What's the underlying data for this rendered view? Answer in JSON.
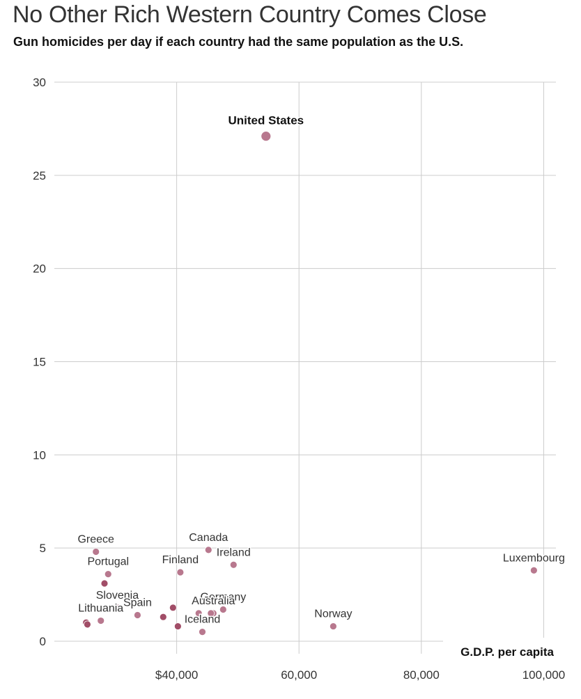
{
  "header": {
    "title": "No Other Rich Western Country Comes Close",
    "subtitle": "Gun homicides per day if each country had the same population as the U.S."
  },
  "colors": {
    "point": "#b8788e",
    "point_dark": "#a14d67",
    "highlight": "#b8788e",
    "grid": "#cccccc",
    "label_halo": "#ffffff"
  },
  "chart_data": {
    "type": "scatter",
    "title": "No Other Rich Western Country Comes Close",
    "subtitle": "Gun homicides per day if each country had the same population as the U.S.",
    "xlabel": "G.D.P. per capita",
    "ylabel": "",
    "xlim": [
      20000,
      102000
    ],
    "ylim": [
      0,
      30
    ],
    "xticks": [
      40000,
      60000,
      80000,
      100000
    ],
    "xtick_labels": [
      "$40,000",
      "60,000",
      "80,000",
      "100,000"
    ],
    "yticks": [
      0,
      5,
      10,
      15,
      20,
      25,
      30
    ],
    "ytick_labels": [
      "0",
      "5",
      "10",
      "15",
      "20",
      "25",
      "30"
    ],
    "grid": true,
    "points": [
      {
        "label": "United States",
        "x": 54600,
        "y": 27.1,
        "highlight": true
      },
      {
        "label": "Greece",
        "x": 26800,
        "y": 4.8
      },
      {
        "label": "Portugal",
        "x": 28800,
        "y": 3.6
      },
      {
        "label": "",
        "x": 28200,
        "y": 3.1
      },
      {
        "label": "Canada",
        "x": 45200,
        "y": 4.9
      },
      {
        "label": "Ireland",
        "x": 49300,
        "y": 4.1
      },
      {
        "label": "Finland",
        "x": 40600,
        "y": 3.7
      },
      {
        "label": "Luxembourg",
        "x": 98400,
        "y": 3.8
      },
      {
        "label": "Slovenia",
        "x": 30300,
        "y": 1.8
      },
      {
        "label": "Spain",
        "x": 33600,
        "y": 1.4
      },
      {
        "label": "Lithuania",
        "x": 27600,
        "y": 1.1
      },
      {
        "label": "",
        "x": 25200,
        "y": 1.0
      },
      {
        "label": "",
        "x": 25400,
        "y": 0.9
      },
      {
        "label": "",
        "x": 37800,
        "y": 1.3
      },
      {
        "label": "",
        "x": 39400,
        "y": 1.8
      },
      {
        "label": "Germany",
        "x": 47600,
        "y": 1.7
      },
      {
        "label": "Australia",
        "x": 46000,
        "y": 1.5
      },
      {
        "label": "",
        "x": 43600,
        "y": 1.5
      },
      {
        "label": "",
        "x": 45600,
        "y": 1.5
      },
      {
        "label": "Iceland",
        "x": 44200,
        "y": 0.5
      },
      {
        "label": "",
        "x": 40200,
        "y": 0.8
      },
      {
        "label": "Norway",
        "x": 65600,
        "y": 0.8
      }
    ]
  }
}
